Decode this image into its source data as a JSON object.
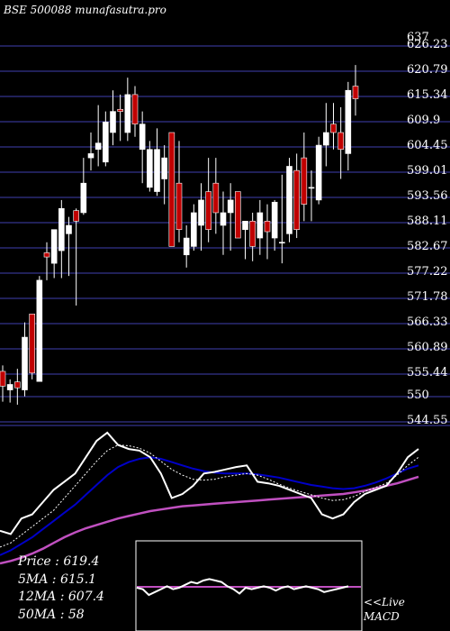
{
  "chart_data": {
    "type": "candlestick",
    "title": "BSE 500088  munafasutra.pro",
    "y_ticks": [
      "637",
      "626.23",
      "620.79",
      "615.34",
      "609.9",
      "604.45",
      "599.01",
      "593.56",
      "588.11",
      "582.67",
      "577.22",
      "571.78",
      "566.33",
      "560.89",
      "555.44",
      "550",
      "544.55"
    ],
    "ylim": [
      543,
      637
    ],
    "candles": [
      {
        "o": 555.4,
        "h": 556.8,
        "l": 548.2,
        "c": 551.9,
        "color": "red"
      },
      {
        "o": 551.0,
        "h": 553.5,
        "l": 548.0,
        "c": 552.3,
        "color": "white"
      },
      {
        "o": 552.9,
        "h": 556.0,
        "l": 547.5,
        "c": 551.5,
        "color": "red"
      },
      {
        "o": 551.0,
        "h": 567.0,
        "l": 549.5,
        "c": 563.5,
        "color": "white"
      },
      {
        "o": 569.0,
        "h": 569.0,
        "l": 553.5,
        "c": 555.0,
        "color": "red"
      },
      {
        "o": 553.0,
        "h": 578.0,
        "l": 553.0,
        "c": 577.0,
        "color": "white"
      },
      {
        "o": 583.5,
        "h": 586.0,
        "l": 577.0,
        "c": 582.5,
        "color": "red"
      },
      {
        "o": 581.0,
        "h": 589.0,
        "l": 577.5,
        "c": 589.0,
        "color": "white"
      },
      {
        "o": 584.0,
        "h": 596.0,
        "l": 577.5,
        "c": 594.0,
        "color": "white"
      },
      {
        "o": 588.0,
        "h": 592.0,
        "l": 578.0,
        "c": 590.0,
        "color": "white"
      },
      {
        "o": 591.0,
        "h": 594.0,
        "l": 571.0,
        "c": 593.5,
        "color": "red"
      },
      {
        "o": 593.0,
        "h": 606.0,
        "l": 592.5,
        "c": 600.0,
        "color": "white"
      },
      {
        "o": 606.0,
        "h": 612.0,
        "l": 603.0,
        "c": 607.0,
        "color": "white"
      },
      {
        "o": 608.0,
        "h": 618.5,
        "l": 604.0,
        "c": 609.5,
        "color": "white"
      },
      {
        "o": 605.0,
        "h": 617.0,
        "l": 604.0,
        "c": 614.5,
        "color": "white"
      },
      {
        "o": 612.0,
        "h": 622.0,
        "l": 609.0,
        "c": 617.0,
        "color": "white"
      },
      {
        "o": 617.0,
        "h": 621.0,
        "l": 610.0,
        "c": 617.5,
        "color": "red"
      },
      {
        "o": 612.0,
        "h": 625.0,
        "l": 610.0,
        "c": 621.0,
        "color": "white"
      },
      {
        "o": 621.0,
        "h": 623.0,
        "l": 611.0,
        "c": 614.0,
        "color": "red"
      },
      {
        "o": 608.0,
        "h": 617.0,
        "l": 600.0,
        "c": 614.0,
        "color": "white"
      },
      {
        "o": 608.0,
        "h": 610.0,
        "l": 598.0,
        "c": 599.0,
        "color": "white"
      },
      {
        "o": 598.0,
        "h": 613.0,
        "l": 597.0,
        "c": 608.0,
        "color": "white"
      },
      {
        "o": 606.0,
        "h": 609.0,
        "l": 595.0,
        "c": 601.0,
        "color": "white"
      },
      {
        "o": 612.0,
        "h": 612.0,
        "l": 585.0,
        "c": 585.0,
        "color": "red"
      },
      {
        "o": 600.0,
        "h": 610.0,
        "l": 586.0,
        "c": 589.0,
        "color": "red"
      },
      {
        "o": 587.0,
        "h": 590.0,
        "l": 580.0,
        "c": 583.0,
        "color": "white"
      },
      {
        "o": 585.0,
        "h": 595.0,
        "l": 584.0,
        "c": 593.0,
        "color": "white"
      },
      {
        "o": 590.0,
        "h": 600.0,
        "l": 584.0,
        "c": 596.0,
        "color": "white"
      },
      {
        "o": 598.0,
        "h": 606.0,
        "l": 586.0,
        "c": 589.0,
        "color": "red"
      },
      {
        "o": 600.0,
        "h": 606.0,
        "l": 588.0,
        "c": 593.0,
        "color": "red"
      },
      {
        "o": 590.0,
        "h": 598.0,
        "l": 583.0,
        "c": 593.0,
        "color": "white"
      },
      {
        "o": 596.0,
        "h": 600.0,
        "l": 584.0,
        "c": 593.0,
        "color": "white"
      },
      {
        "o": 598.0,
        "h": 598.0,
        "l": 587.0,
        "c": 587.0,
        "color": "red"
      },
      {
        "o": 589.0,
        "h": 591.0,
        "l": 582.0,
        "c": 591.0,
        "color": "white"
      },
      {
        "o": 591.0,
        "h": 593.0,
        "l": 581.5,
        "c": 585.0,
        "color": "red"
      },
      {
        "o": 587.0,
        "h": 596.0,
        "l": 583.0,
        "c": 593.0,
        "color": "white"
      },
      {
        "o": 591.0,
        "h": 595.0,
        "l": 582.0,
        "c": 588.5,
        "color": "red"
      },
      {
        "o": 587.0,
        "h": 596.0,
        "l": 584.0,
        "c": 595.5,
        "color": "white"
      },
      {
        "o": 586.0,
        "h": 602.0,
        "l": 581.0,
        "c": 586.0,
        "color": "white"
      },
      {
        "o": 588.0,
        "h": 606.0,
        "l": 586.0,
        "c": 604.0,
        "color": "white"
      },
      {
        "o": 603.0,
        "h": 607.0,
        "l": 587.0,
        "c": 589.0,
        "color": "red"
      },
      {
        "o": 606.0,
        "h": 612.0,
        "l": 591.0,
        "c": 595.0,
        "color": "red"
      },
      {
        "o": 599.0,
        "h": 603.0,
        "l": 591.0,
        "c": 599.0,
        "color": "white"
      },
      {
        "o": 596.0,
        "h": 611.0,
        "l": 595.0,
        "c": 609.0,
        "color": "white"
      },
      {
        "o": 609.0,
        "h": 619.0,
        "l": 604.0,
        "c": 612.0,
        "color": "white"
      },
      {
        "o": 614.0,
        "h": 619.0,
        "l": 608.0,
        "c": 612.0,
        "color": "red"
      },
      {
        "o": 612.0,
        "h": 618.0,
        "l": 601.0,
        "c": 608.0,
        "color": "red"
      },
      {
        "o": 607.0,
        "h": 624.0,
        "l": 603.0,
        "c": 622.0,
        "color": "white"
      },
      {
        "o": 623.0,
        "h": 628.0,
        "l": 616.0,
        "c": 620.0,
        "color": "red"
      }
    ],
    "price_bar_range": [
      546,
      549
    ],
    "ma_fast": [
      40,
      36,
      55,
      60,
      75,
      90,
      100,
      110,
      130,
      150,
      160,
      145,
      140,
      138,
      130,
      110,
      80,
      85,
      95,
      110,
      112,
      115,
      118,
      120,
      100,
      98,
      95,
      90,
      85,
      80,
      60,
      55,
      60,
      75,
      85,
      90,
      95,
      110,
      130,
      140
    ],
    "ma_mid": [
      20,
      25,
      35,
      45,
      55,
      65,
      80,
      95,
      110,
      125,
      138,
      145,
      144,
      141,
      135,
      125,
      115,
      108,
      103,
      102,
      103,
      106,
      108,
      110,
      108,
      103,
      97,
      92,
      88,
      84,
      80,
      77,
      78,
      82,
      88,
      93,
      98,
      108,
      120,
      130
    ],
    "ma_slow": [
      10,
      16,
      24,
      32,
      42,
      52,
      62,
      72,
      84,
      96,
      108,
      118,
      124,
      128,
      130,
      128,
      124,
      120,
      116,
      113,
      111,
      110,
      110,
      110,
      109,
      107,
      105,
      102,
      99,
      96,
      94,
      92,
      91,
      92,
      95,
      99,
      104,
      110,
      116,
      120
    ],
    "ma_long": [
      0,
      3,
      7,
      12,
      18,
      25,
      32,
      38,
      43,
      47,
      51,
      55,
      58,
      61,
      64,
      66,
      68,
      70,
      71,
      72,
      73,
      74,
      75,
      76,
      77,
      78,
      79,
      80,
      81,
      82,
      83,
      84,
      85,
      87,
      89,
      92,
      95,
      98,
      102,
      106
    ],
    "macd_line": [
      5,
      4,
      0,
      2,
      4,
      6,
      4,
      5,
      7,
      9,
      8,
      10,
      11,
      10,
      9,
      6,
      4,
      1,
      5,
      4,
      5,
      6,
      5,
      3,
      5,
      6,
      4,
      5,
      6,
      5,
      4,
      2,
      3,
      4,
      5,
      6
    ]
  },
  "legend": {
    "price": "Price   : 619.4",
    "ma5": "5MA  : 615.1",
    "ma12": "12MA : 607.4",
    "ma50": "50MA : 58"
  },
  "macd_label": {
    "live": "<<Live",
    "name": "MACD"
  },
  "colors": {
    "background": "#000000",
    "gridline": "#3f3fb0",
    "bull_candle": "#ffffff",
    "bear_candle": "#c00000",
    "ma_fast": "#ffffff",
    "ma_mid": "#ffffff",
    "ma_slow": "#0000c8",
    "ma_long": "#c050c0",
    "macd": "#ffffff",
    "macd_signal": "#c050c0"
  }
}
